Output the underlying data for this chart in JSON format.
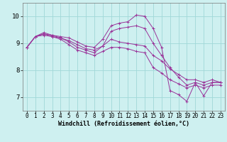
{
  "background_color": "#cef0f0",
  "line_color": "#993399",
  "grid_color": "#a0d8d8",
  "xlabel": "Windchill (Refroidissement éolien,°C)",
  "xlabel_fontsize": 6.0,
  "tick_fontsize": 5.5,
  "ytick_fontsize": 6.5,
  "xlim": [
    -0.5,
    23.5
  ],
  "ylim": [
    6.5,
    10.5
  ],
  "yticks": [
    7,
    8,
    9,
    10
  ],
  "xticks": [
    0,
    1,
    2,
    3,
    4,
    5,
    6,
    7,
    8,
    9,
    10,
    11,
    12,
    13,
    14,
    15,
    16,
    17,
    18,
    19,
    20,
    21,
    22,
    23
  ],
  "series": [
    {
      "x": [
        0,
        1,
        2,
        3,
        4,
        5,
        6,
        7,
        8,
        9,
        10,
        11,
        12,
        13,
        14,
        15,
        16,
        17,
        18,
        19,
        20,
        21,
        22,
        23
      ],
      "y": [
        8.85,
        9.25,
        9.4,
        9.3,
        9.25,
        9.2,
        9.05,
        8.9,
        8.85,
        9.15,
        9.65,
        9.75,
        9.8,
        10.05,
        10.0,
        9.55,
        8.85,
        7.25,
        7.1,
        6.85,
        7.55,
        7.05,
        7.55,
        7.55
      ]
    },
    {
      "x": [
        0,
        1,
        2,
        3,
        4,
        5,
        6,
        7,
        8,
        9,
        10,
        11,
        12,
        13,
        14,
        15,
        16,
        17,
        18,
        19,
        20,
        21,
        22,
        23
      ],
      "y": [
        8.85,
        9.25,
        9.3,
        9.25,
        9.2,
        9.1,
        8.95,
        8.8,
        8.75,
        8.9,
        9.45,
        9.55,
        9.6,
        9.65,
        9.55,
        9.0,
        8.55,
        8.1,
        7.75,
        7.45,
        7.55,
        7.45,
        7.55,
        7.55
      ]
    },
    {
      "x": [
        0,
        1,
        2,
        3,
        4,
        5,
        6,
        7,
        8,
        9,
        10,
        11,
        12,
        13,
        14,
        15,
        16,
        17,
        18,
        19,
        20,
        21,
        22,
        23
      ],
      "y": [
        8.85,
        9.25,
        9.35,
        9.3,
        9.2,
        9.05,
        8.85,
        8.75,
        8.65,
        8.9,
        9.15,
        9.05,
        9.0,
        8.95,
        8.9,
        8.55,
        8.35,
        8.05,
        7.85,
        7.65,
        7.65,
        7.55,
        7.65,
        7.55
      ]
    },
    {
      "x": [
        0,
        1,
        2,
        3,
        4,
        5,
        6,
        7,
        8,
        9,
        10,
        11,
        12,
        13,
        14,
        15,
        16,
        17,
        18,
        19,
        20,
        21,
        22,
        23
      ],
      "y": [
        8.85,
        9.25,
        9.35,
        9.25,
        9.15,
        8.95,
        8.75,
        8.65,
        8.55,
        8.7,
        8.85,
        8.85,
        8.8,
        8.7,
        8.65,
        8.1,
        7.9,
        7.65,
        7.5,
        7.35,
        7.45,
        7.35,
        7.45,
        7.45
      ]
    }
  ]
}
